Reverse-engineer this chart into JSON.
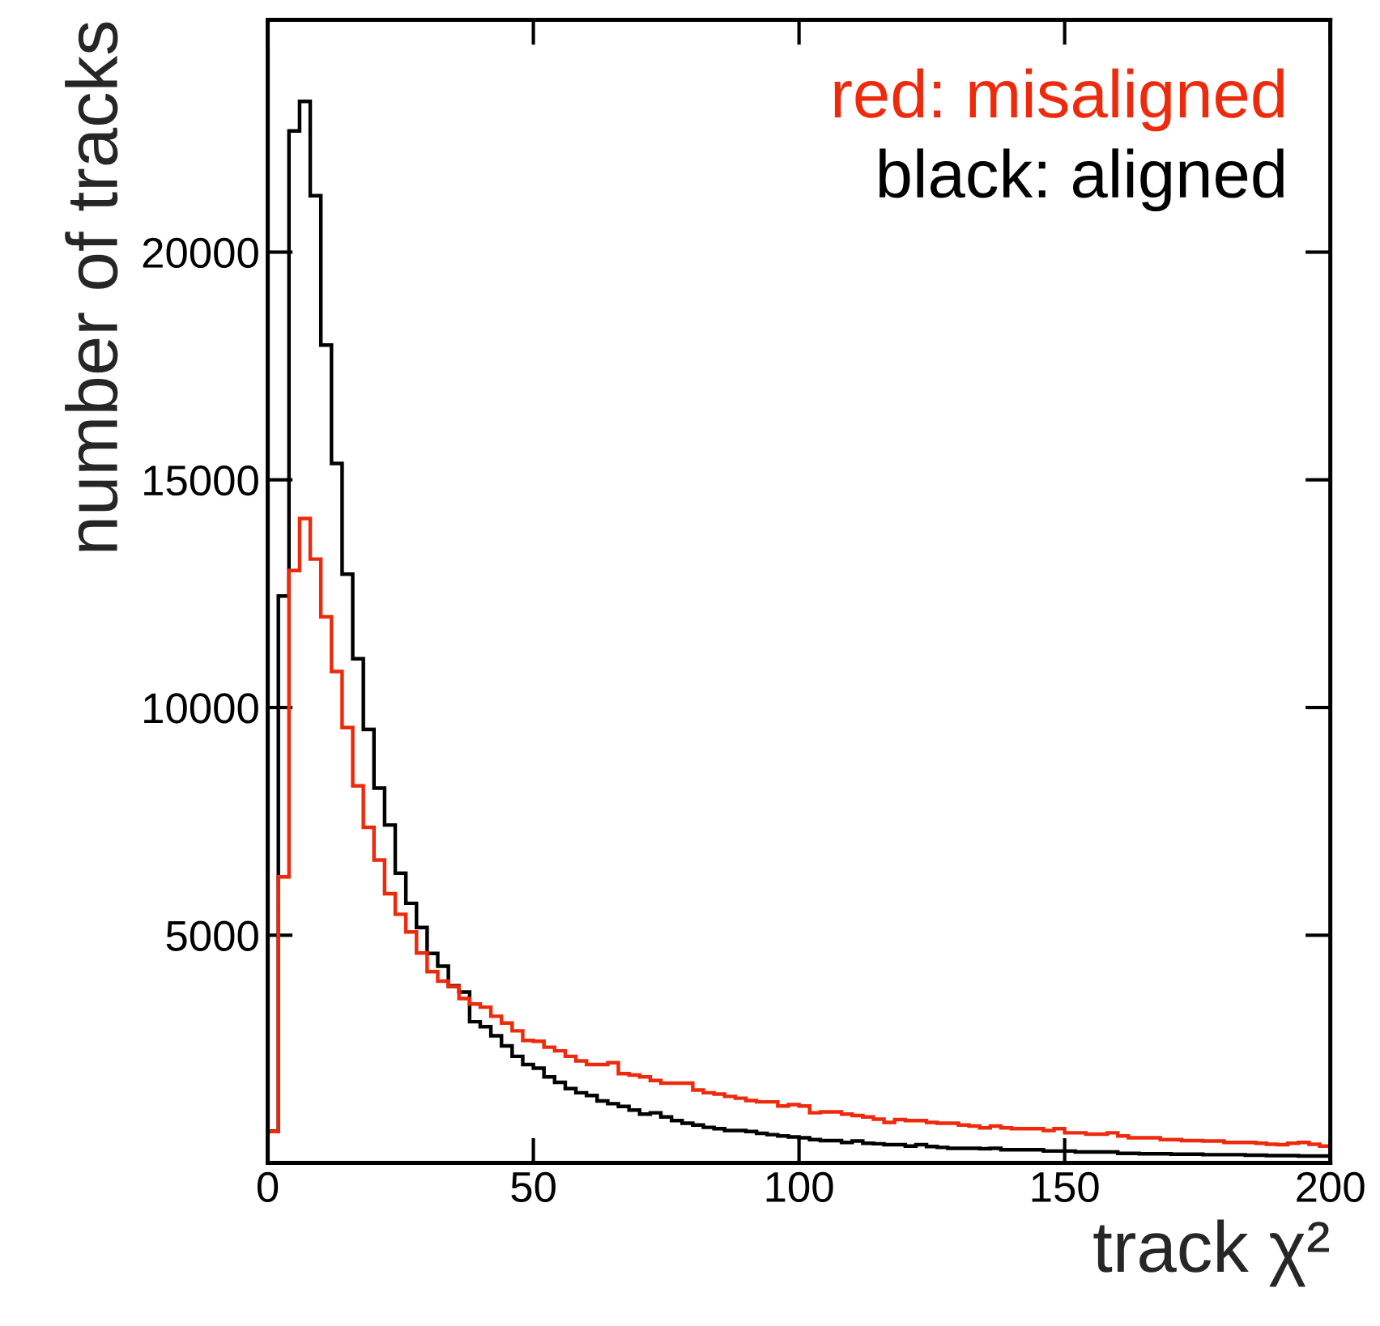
{
  "chart_data": {
    "type": "histogram",
    "xlabel": "track χ²",
    "ylabel": "number of tracks",
    "annotations": [
      "red: misaligned",
      "black: aligned"
    ],
    "bins": [
      0,
      2,
      4,
      6,
      8,
      10,
      12,
      14,
      16,
      18,
      20,
      22,
      24,
      26,
      28,
      30,
      32,
      34,
      36,
      38,
      40,
      42,
      44,
      46,
      48,
      50,
      52,
      54,
      56,
      58,
      60,
      62,
      64,
      66,
      68,
      70,
      72,
      74,
      76,
      78,
      80,
      82,
      84,
      86,
      88,
      90,
      92,
      94,
      96,
      98,
      100,
      102,
      104,
      106,
      108,
      110,
      112,
      114,
      116,
      118,
      120,
      122,
      124,
      126,
      128,
      130,
      132,
      134,
      136,
      138,
      140,
      142,
      144,
      146,
      148,
      150,
      152,
      154,
      156,
      158,
      160,
      162,
      164,
      166,
      168,
      170,
      172,
      174,
      176,
      178,
      180,
      182,
      184,
      186,
      188,
      190,
      192,
      194,
      196,
      198,
      200
    ],
    "series": [
      {
        "color": "#000000",
        "values": [
          700,
          12450,
          22660,
          23310,
          21240,
          17960,
          15360,
          12930,
          11070,
          9520,
          8230,
          7420,
          6360,
          5700,
          5170,
          4600,
          4320,
          3890,
          3750,
          3100,
          2990,
          2790,
          2570,
          2340,
          2160,
          2080,
          1890,
          1770,
          1630,
          1540,
          1480,
          1360,
          1300,
          1240,
          1160,
          1070,
          1100,
          1010,
          930,
          870,
          830,
          780,
          750,
          710,
          710,
          690,
          650,
          620,
          590,
          570,
          550,
          510,
          490,
          490,
          450,
          480,
          430,
          420,
          400,
          400,
          370,
          400,
          360,
          340,
          320,
          320,
          320,
          310,
          320,
          290,
          290,
          290,
          290,
          260,
          260,
          260,
          240,
          240,
          240,
          240,
          210,
          210,
          200,
          200,
          200,
          190,
          190,
          190,
          180,
          180,
          180,
          180,
          170,
          170,
          160,
          160,
          160,
          150,
          150,
          150
        ]
      },
      {
        "color": "#ee2a0c",
        "values": [
          690,
          6280,
          13010,
          14150,
          13260,
          11990,
          10790,
          9560,
          8280,
          7370,
          6650,
          5910,
          5460,
          5070,
          4610,
          4200,
          3990,
          3870,
          3610,
          3490,
          3420,
          3220,
          3070,
          2900,
          2690,
          2670,
          2540,
          2460,
          2340,
          2240,
          2160,
          2160,
          2200,
          1960,
          1930,
          1890,
          1810,
          1750,
          1750,
          1750,
          1600,
          1540,
          1510,
          1460,
          1420,
          1370,
          1340,
          1340,
          1250,
          1280,
          1250,
          1100,
          1120,
          1120,
          1070,
          1040,
          1010,
          960,
          890,
          950,
          930,
          930,
          890,
          870,
          870,
          830,
          810,
          770,
          810,
          770,
          750,
          750,
          750,
          710,
          750,
          660,
          660,
          630,
          630,
          660,
          590,
          550,
          550,
          550,
          510,
          510,
          490,
          490,
          480,
          480,
          450,
          450,
          450,
          430,
          410,
          400,
          430,
          450,
          410,
          370
        ]
      }
    ],
    "xlim": [
      0,
      200
    ],
    "xticks": [
      0,
      50,
      100,
      150,
      200
    ],
    "ylim": [
      0,
      25100
    ],
    "yticks": [
      5000,
      10000,
      15000,
      20000
    ],
    "grid": false,
    "legend": false
  }
}
